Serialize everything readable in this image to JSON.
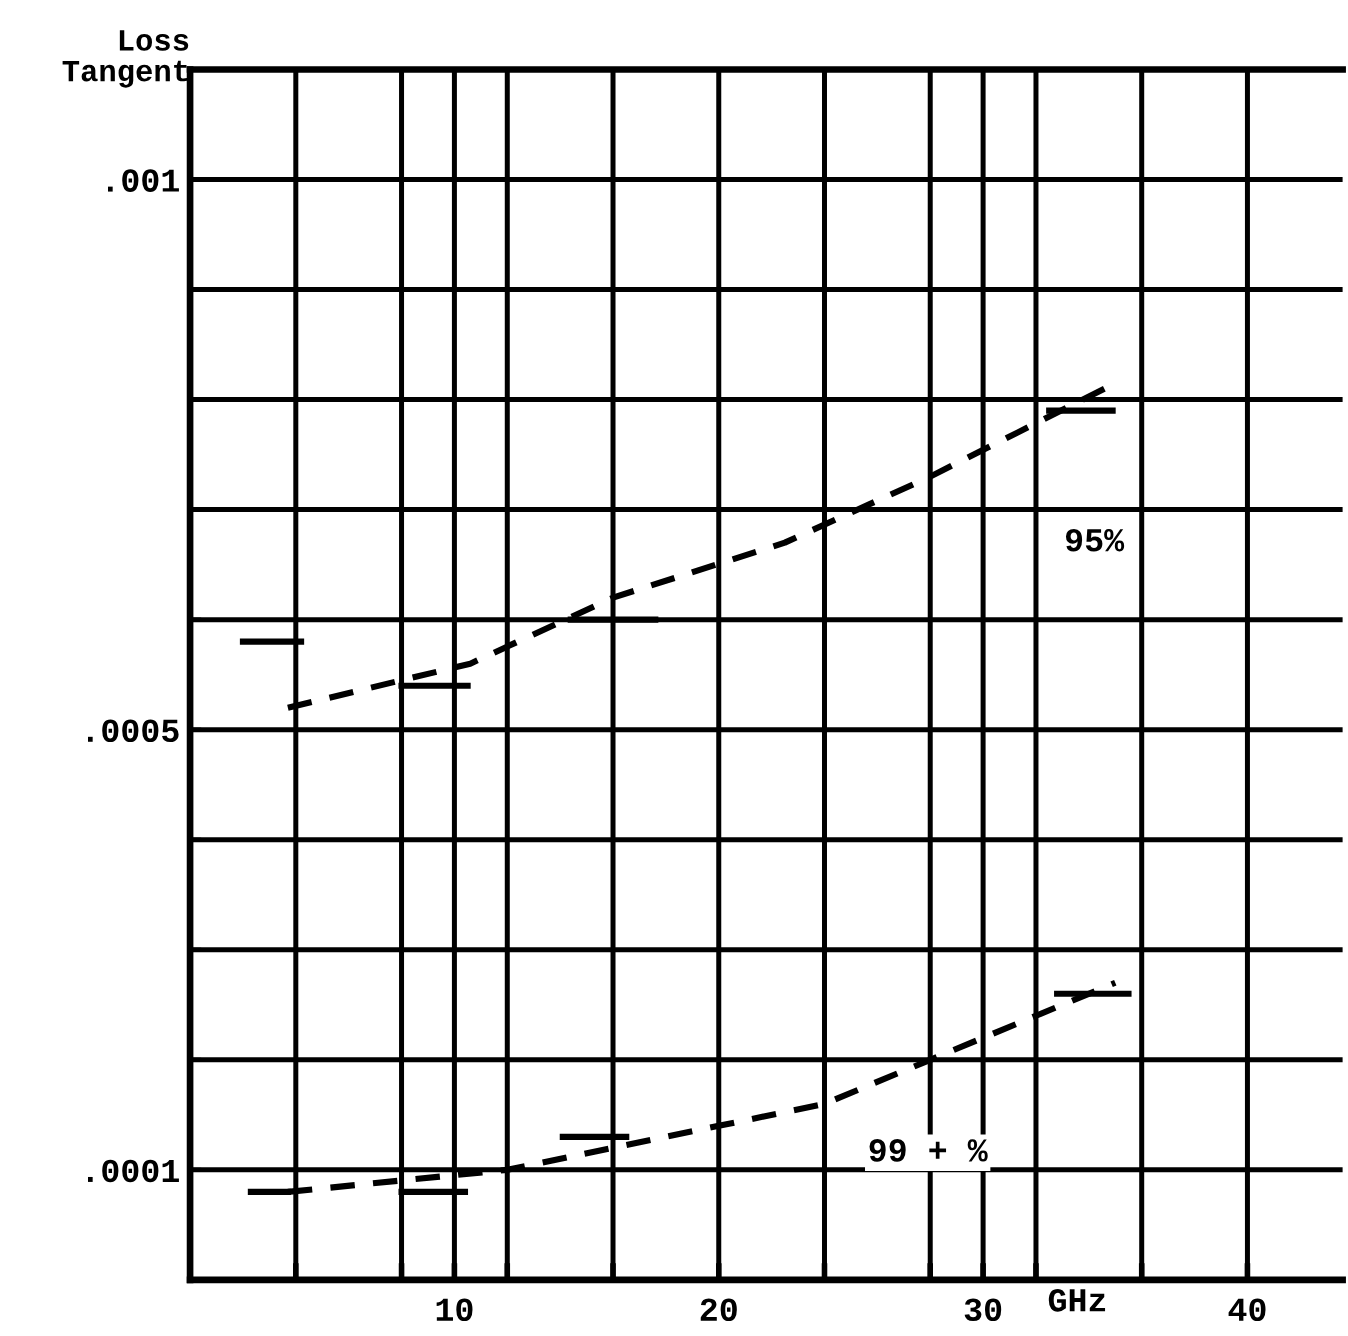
{
  "chart_data": {
    "type": "line",
    "xlabel": "GHz",
    "ylabel": "Loss Tangent",
    "xlim": [
      0,
      43.6
    ],
    "ylim": [
      0,
      0.0011
    ],
    "xticks": [
      {
        "value": 4,
        "label": null
      },
      {
        "value": 8,
        "label": null
      },
      10,
      {
        "value": 12,
        "label": null
      },
      {
        "value": 16,
        "label": null
      },
      20,
      {
        "value": 24,
        "label": null
      },
      {
        "value": 28,
        "label": null
      },
      30,
      {
        "value": 32,
        "label": null
      },
      {
        "value": 36,
        "label": null
      },
      40
    ],
    "yticks": [
      {
        "value": 0.0001,
        "label": ".0001"
      },
      {
        "value": 0.0002,
        "label": null
      },
      {
        "value": 0.0003,
        "label": null
      },
      {
        "value": 0.0004,
        "label": null
      },
      {
        "value": 0.0005,
        "label": ".0005"
      },
      {
        "value": 0.0006,
        "label": null
      },
      {
        "value": 0.0007,
        "label": null
      },
      {
        "value": 0.0008,
        "label": null
      },
      {
        "value": 0.0009,
        "label": null
      },
      {
        "value": 0.001,
        "label": ".001"
      }
    ],
    "grid": true,
    "legend": false,
    "series": [
      {
        "color": "#000000",
        "line_style": "solid",
        "x": [
          2.0,
          4.2,
          null,
          8.0,
          10.5,
          null,
          14.4,
          17.6,
          null,
          32.5,
          34.9
        ],
        "values": [
          0.00058,
          0.00058,
          null,
          0.00054,
          0.00054,
          null,
          0.0006,
          0.0006,
          null,
          0.00079,
          0.00079
        ]
      },
      {
        "color": "#000000",
        "line_style": "dashed",
        "x": [
          3.7,
          10.6,
          16,
          22.5,
          28,
          34.6
        ],
        "values": [
          0.00052,
          0.00056,
          0.00062,
          0.00067,
          0.00073,
          0.00081
        ]
      },
      {
        "color": "#000000",
        "line_style": "solid",
        "x": [
          2.3,
          3.7,
          null,
          8.0,
          10.4,
          null,
          14.1,
          16.5,
          null,
          32.8,
          35.5
        ],
        "values": [
          8e-05,
          8e-05,
          null,
          8e-05,
          8e-05,
          null,
          0.00013,
          0.00013,
          null,
          0.00026,
          0.00026
        ]
      },
      {
        "color": "#000000",
        "line_style": "dashed",
        "x": [
          3.7,
          12,
          16,
          20,
          24,
          28,
          32,
          35
        ],
        "values": [
          8e-05,
          0.0001,
          0.00012,
          0.00014,
          0.00016,
          0.0002,
          0.00024,
          0.00027
        ]
      }
    ],
    "annotations": [
      {
        "text": "95%",
        "x": 34.2,
        "y": 0.00067
      },
      "99 + %"
    ]
  }
}
